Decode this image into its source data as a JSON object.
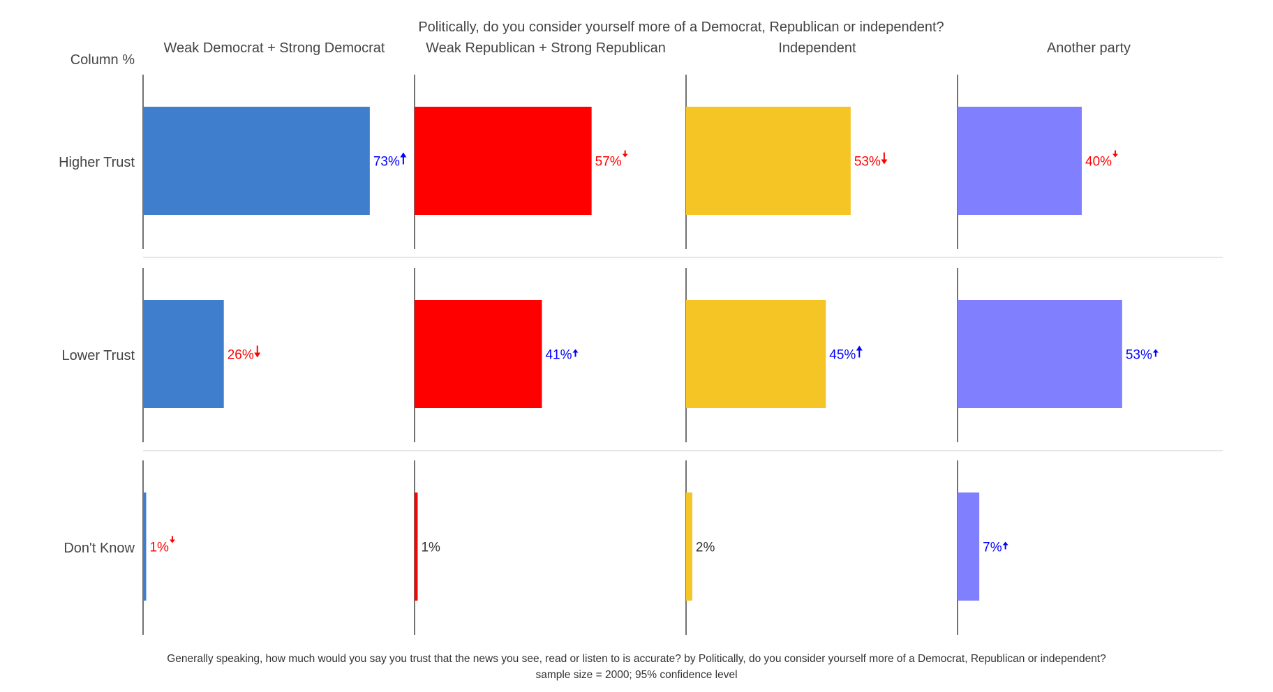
{
  "chart_data": {
    "type": "bar",
    "orientation": "horizontal",
    "title": "Politically, do you consider yourself more of a Democrat, Republican or independent?",
    "corner_label": "Column %",
    "footnote_line1": "Generally speaking, how much would you say you trust that the news you see, read or listen to is accurate? by Politically, do you consider yourself more of a Democrat, Republican or independent?",
    "footnote_line2": "sample size = 2000; 95% confidence level",
    "rows": [
      "Higher Trust",
      "Lower Trust",
      "Don't Know"
    ],
    "xlim": [
      0,
      100
    ],
    "columns": [
      {
        "name": "Weak Democrat + Strong Democrat",
        "color": "#3e7ecc",
        "values": [
          73,
          26,
          1
        ],
        "labels": [
          "73%",
          "26%",
          "1%"
        ],
        "significance": [
          "up",
          "down",
          "down-small"
        ]
      },
      {
        "name": "Weak Republican + Strong Republican",
        "color": "#ff0000",
        "values": [
          57,
          41,
          1
        ],
        "labels": [
          "57%",
          "41%",
          "1%"
        ],
        "significance": [
          "down-small",
          "up-small",
          "none"
        ]
      },
      {
        "name": "Independent",
        "color": "#f5c425",
        "values": [
          53,
          45,
          2
        ],
        "labels": [
          "53%",
          "45%",
          "2%"
        ],
        "significance": [
          "down",
          "up",
          "none"
        ]
      },
      {
        "name": "Another party",
        "color": "#8080ff",
        "values": [
          40,
          53,
          7
        ],
        "labels": [
          "40%",
          "53%",
          "7%"
        ],
        "significance": [
          "down-small",
          "up-small",
          "up-small"
        ]
      }
    ],
    "significance_colors": {
      "up": "#0000ff",
      "down": "#ff0000",
      "none": "#333333"
    }
  }
}
